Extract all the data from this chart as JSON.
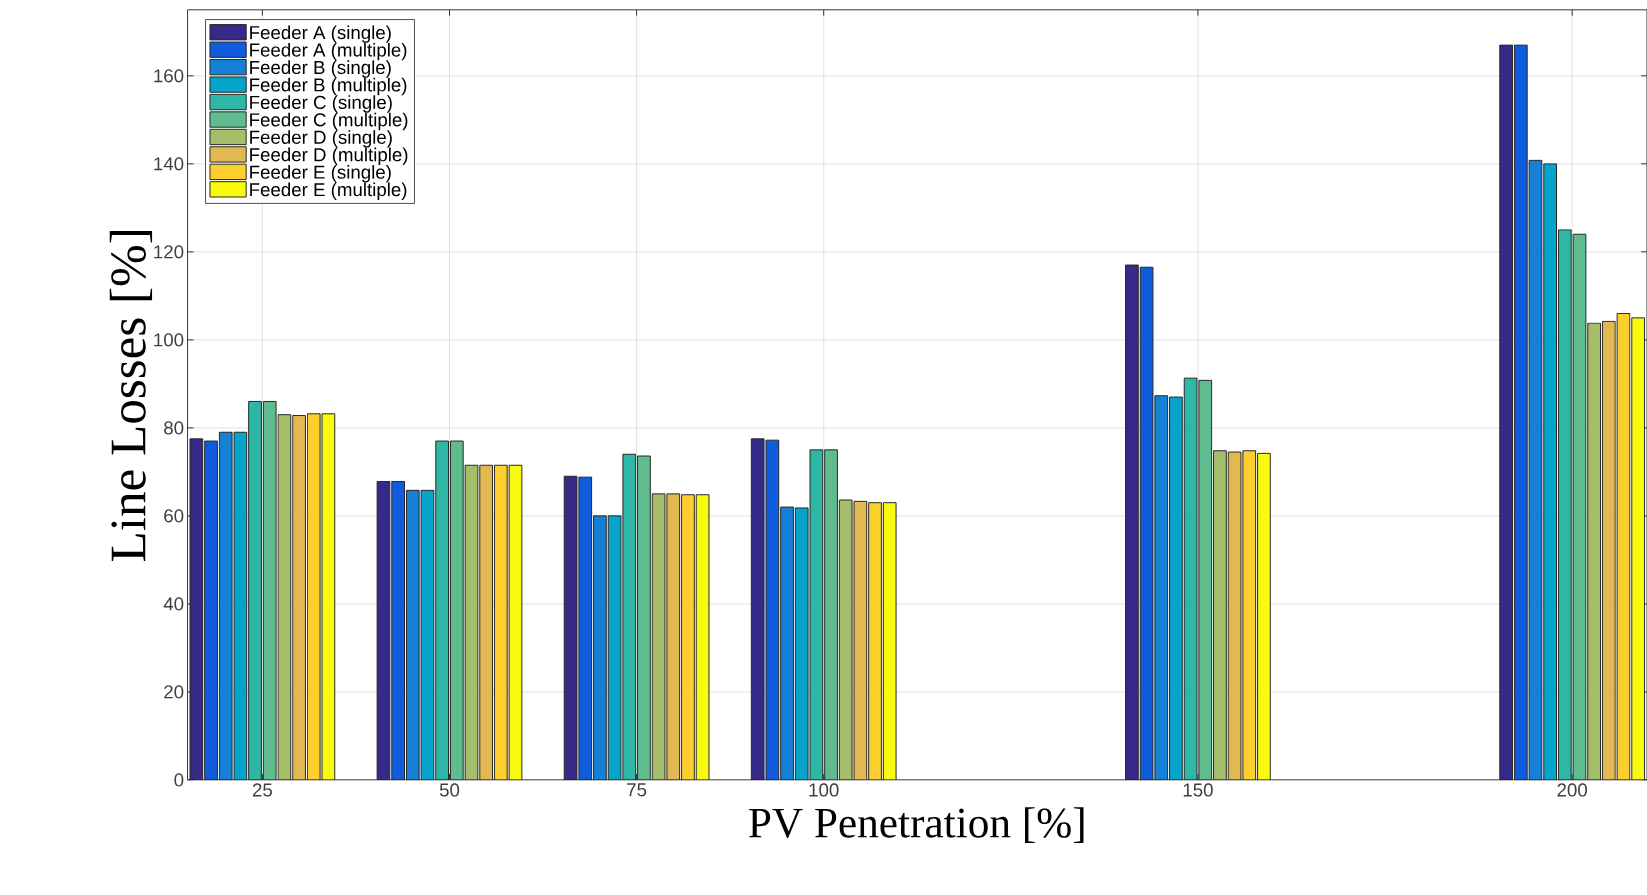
{
  "chart_data": {
    "type": "bar",
    "xlabel": "PV Penetration [%]",
    "ylabel": "Line Losses [%]",
    "x": [
      25,
      50,
      75,
      100,
      150,
      200
    ],
    "series": [
      {
        "name": "Feeder A (single)",
        "color": "#352a87",
        "values": [
          77.5,
          67.8,
          69,
          77.5,
          117,
          167
        ]
      },
      {
        "name": "Feeder A (multiple)",
        "color": "#0f5cdd",
        "values": [
          77,
          67.8,
          68.8,
          77.2,
          116.5,
          167
        ]
      },
      {
        "name": "Feeder B (single)",
        "color": "#1481d6",
        "values": [
          79,
          65.8,
          60,
          62,
          87.3,
          140.8
        ]
      },
      {
        "name": "Feeder B (multiple)",
        "color": "#06a4ca",
        "values": [
          79,
          65.8,
          60,
          61.8,
          87,
          140
        ]
      },
      {
        "name": "Feeder C (single)",
        "color": "#2eb7a4",
        "values": [
          86,
          77,
          74,
          75,
          91.3,
          125
        ]
      },
      {
        "name": "Feeder C (multiple)",
        "color": "#5ebc8f",
        "values": [
          86,
          77,
          73.6,
          75,
          90.8,
          124
        ]
      },
      {
        "name": "Feeder D (single)",
        "color": "#a5be6a",
        "values": [
          83,
          71.5,
          65,
          63.6,
          74.8,
          103.8
        ]
      },
      {
        "name": "Feeder D (multiple)",
        "color": "#e1b852",
        "values": [
          82.8,
          71.5,
          65,
          63.3,
          74.5,
          104.2
        ]
      },
      {
        "name": "Feeder E (single)",
        "color": "#fcce2e",
        "values": [
          83.2,
          71.5,
          64.8,
          63,
          74.8,
          106
        ]
      },
      {
        "name": "Feeder E (multiple)",
        "color": "#f9fb0e",
        "values": [
          83.2,
          71.5,
          64.8,
          63,
          74.2,
          105
        ]
      }
    ],
    "xlim": [
      15,
      210
    ],
    "xticks": [
      25,
      50,
      75,
      100,
      150,
      200
    ],
    "ylim": [
      0,
      175
    ],
    "yticks": [
      0,
      20,
      40,
      60,
      80,
      100,
      120,
      140,
      160
    ],
    "grid": true,
    "legend": "top left"
  }
}
